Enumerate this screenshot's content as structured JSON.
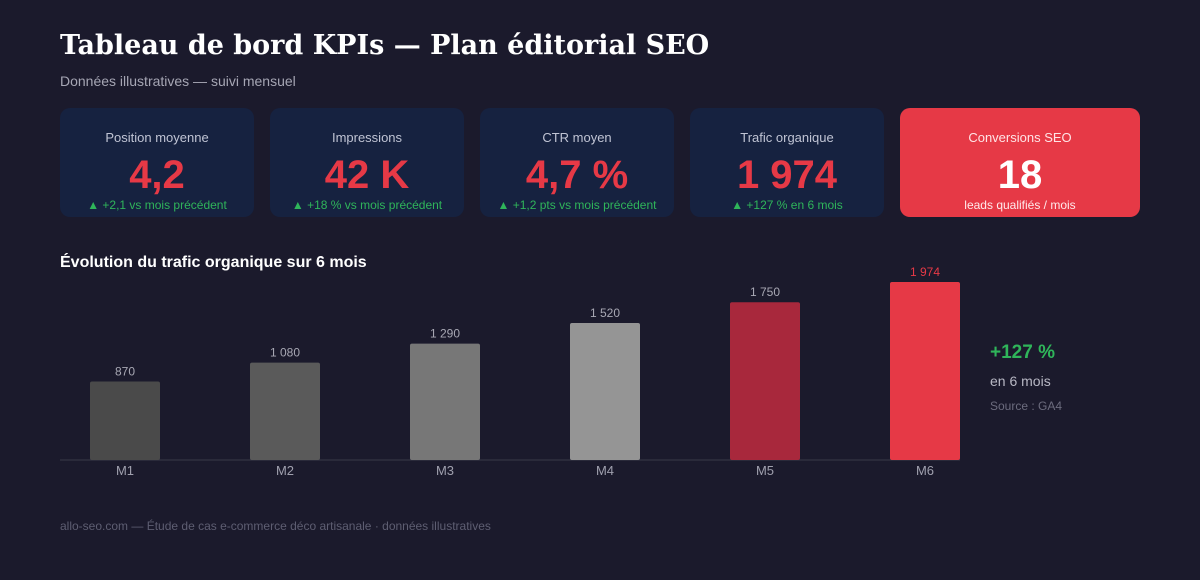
{
  "header": {
    "title": "Tableau de bord KPIs — Plan éditorial SEO",
    "subtitle": "Données illustratives — suivi mensuel"
  },
  "kpis": [
    {
      "label": "Position moyenne",
      "value": "4,2",
      "delta": "▲ +2,1 vs mois précédent"
    },
    {
      "label": "Impressions",
      "value": "42 K",
      "delta": "▲ +18 % vs mois précédent"
    },
    {
      "label": "CTR moyen",
      "value": "4,7 %",
      "delta": "▲ +1,2 pts vs mois précédent"
    },
    {
      "label": "Trafic organique",
      "value": "1 974",
      "delta": "▲ +127 % en 6 mois"
    },
    {
      "label": "Conversions SEO",
      "value": "18",
      "delta": "leads qualifiés / mois"
    }
  ],
  "chart_data": {
    "type": "bar",
    "title": "Évolution du trafic organique sur 6 mois",
    "xlabel": "",
    "ylabel": "",
    "categories": [
      "M1",
      "M2",
      "M3",
      "M4",
      "M5",
      "M6"
    ],
    "values": [
      870,
      1080,
      1290,
      1520,
      1750,
      1974
    ],
    "value_labels": [
      "870",
      "1 080",
      "1 290",
      "1 520",
      "1 750",
      "1 974"
    ],
    "bar_colors": [
      "#4a4a4a",
      "#5a5a5a",
      "#777777",
      "#959595",
      "#a8283c",
      "#e63946"
    ],
    "label_colors": [
      "#a8a8b4",
      "#a8a8b4",
      "#a8a8b4",
      "#a8a8b4",
      "#a8a8b4",
      "#e63946"
    ],
    "ylim": [
      0,
      1974
    ],
    "grid": false,
    "legend": "none"
  },
  "summary": {
    "growth": "+127 %",
    "period": "en 6 mois",
    "source": "Source : GA4"
  },
  "footer": "allo-seo.com — Étude de cas e-commerce déco artisanale · données illustratives",
  "colors": {
    "background": "#1b1a2c",
    "card": "#162240",
    "accent": "#e63946",
    "positive": "#2fb55a"
  }
}
